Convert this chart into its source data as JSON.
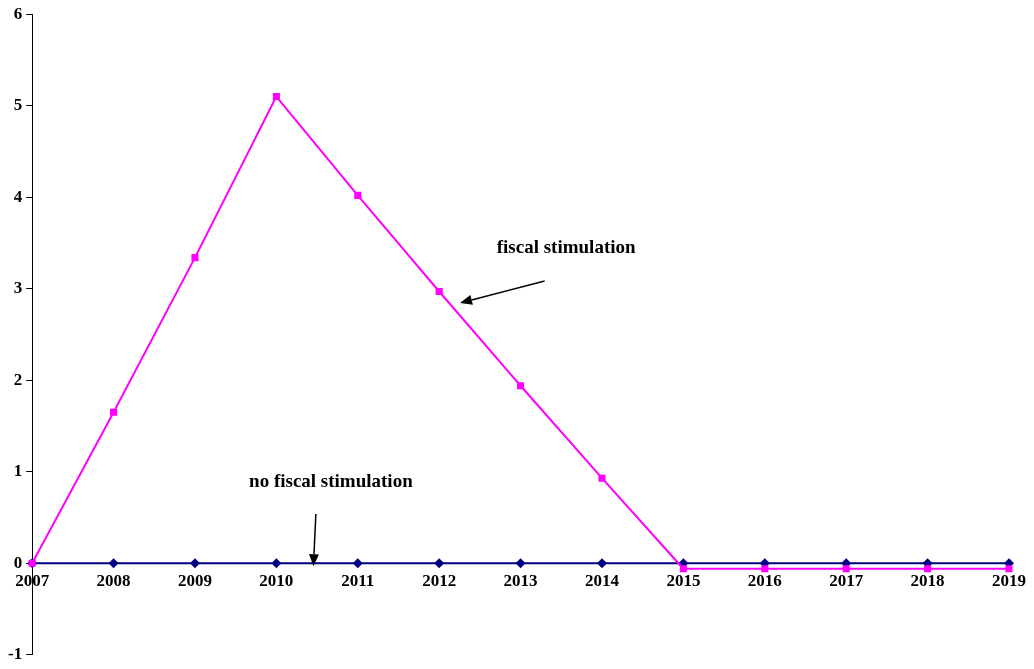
{
  "chart_data": {
    "type": "line",
    "categories": [
      "2007",
      "2008",
      "2009",
      "2010",
      "2011",
      "2012",
      "2013",
      "2014",
      "2015",
      "2016",
      "2017",
      "2018",
      "2019"
    ],
    "series": [
      {
        "color": "#ff00ff",
        "marker": "square",
        "values": [
          0,
          1.65,
          3.34,
          5.1,
          4.02,
          2.97,
          1.94,
          0.93,
          -0.06,
          -0.06,
          -0.06,
          -0.06,
          -0.06
        ]
      },
      {
        "color": "#000080",
        "marker": "diamond",
        "values": [
          0,
          0,
          0,
          0,
          0,
          0,
          0,
          0,
          0,
          0,
          0,
          0,
          0
        ]
      }
    ],
    "annotations": [
      "fiscal stimulation",
      "no fiscal stimulation"
    ],
    "ylim": [
      -1,
      6
    ],
    "yticks": [
      -1,
      0,
      1,
      2,
      3,
      4,
      5,
      6
    ],
    "grid": false,
    "legend": false,
    "line_style": "solid"
  }
}
